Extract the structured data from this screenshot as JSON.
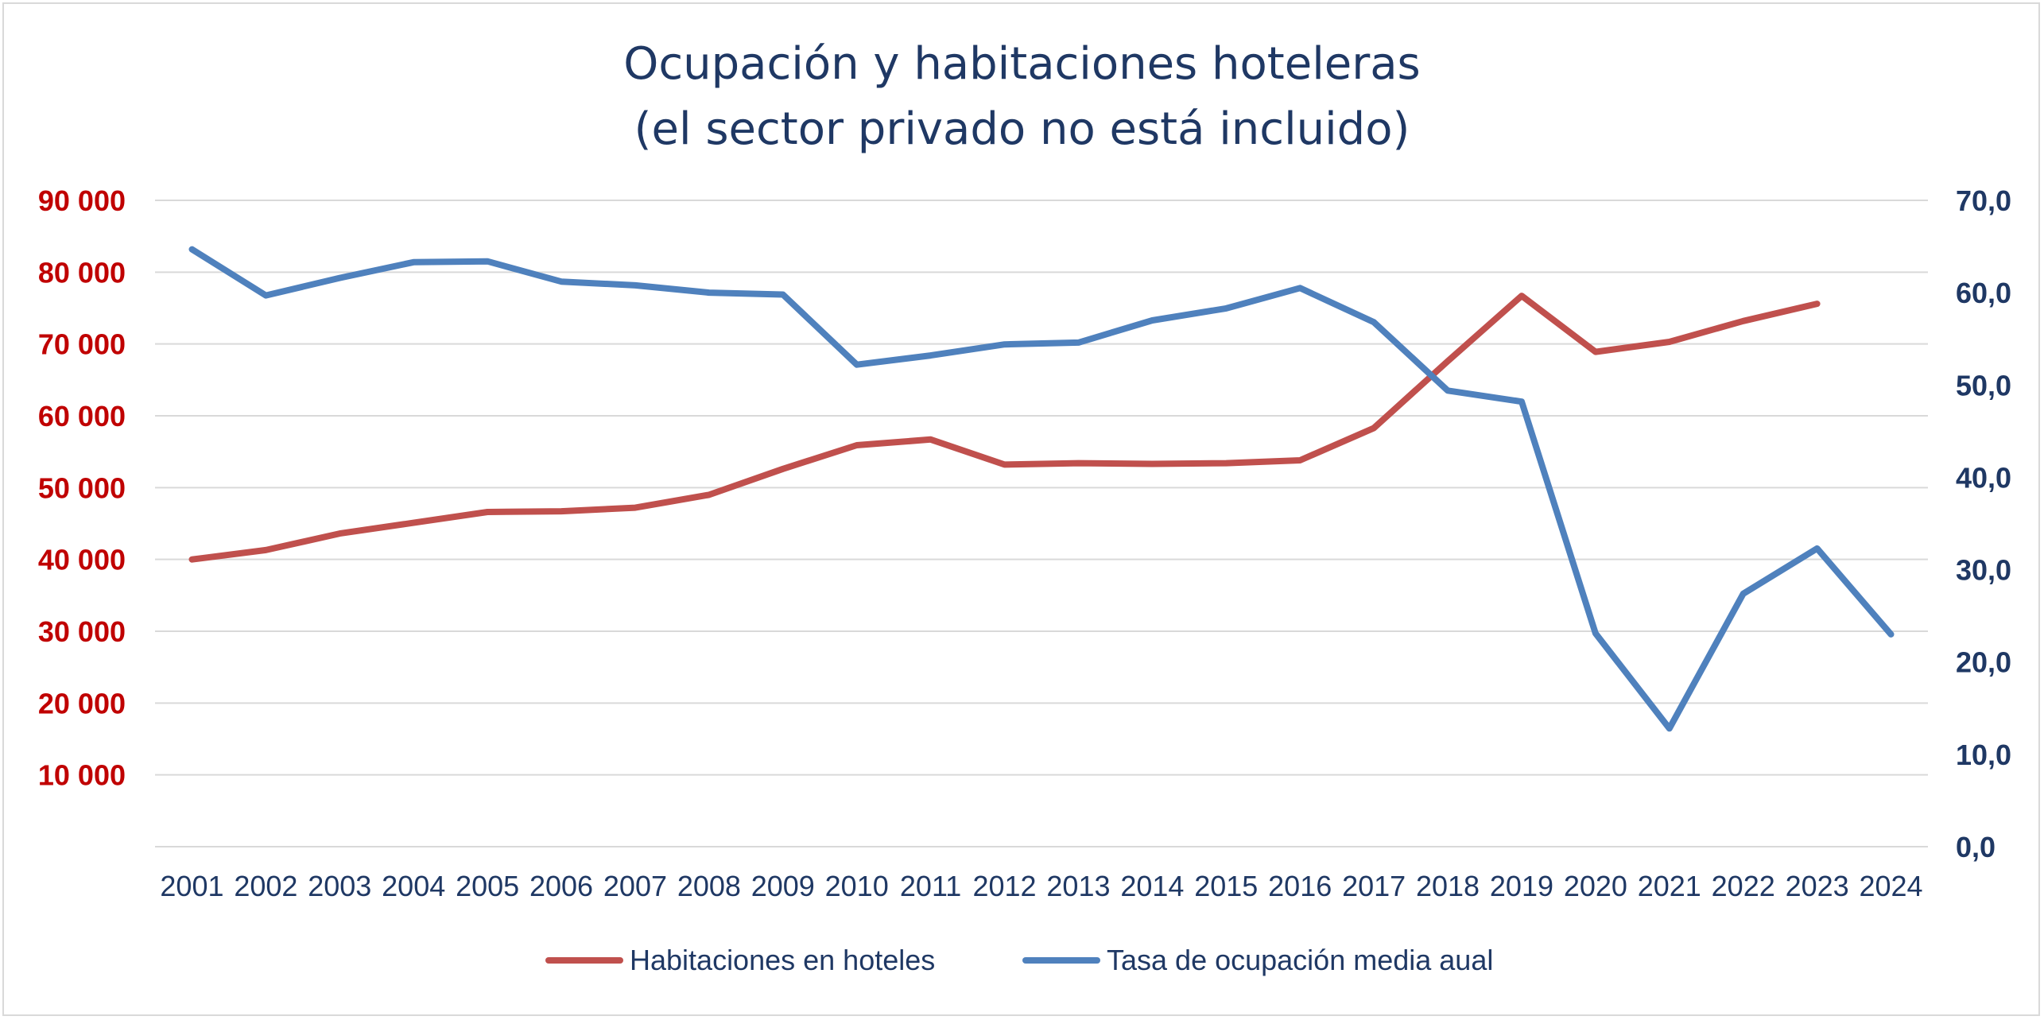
{
  "chart_data": {
    "type": "line",
    "title": "Ocupación y habitaciones hoteleras",
    "subtitle": "(el sector privado no está incluido)",
    "x": [
      "2001",
      "2002",
      "2003",
      "2004",
      "2005",
      "2006",
      "2007",
      "2008",
      "2009",
      "2010",
      "2011",
      "2012",
      "2013",
      "2014",
      "2015",
      "2016",
      "2017",
      "2018",
      "2019",
      "2020",
      "2021",
      "2022",
      "2023",
      "2024"
    ],
    "y_left": {
      "range": [
        0,
        90000
      ],
      "ticks": [
        10000,
        20000,
        30000,
        40000,
        50000,
        60000,
        70000,
        80000,
        90000
      ],
      "tick_labels": [
        "10 000",
        "20 000",
        "30 000",
        "40 000",
        "50 000",
        "60 000",
        "70 000",
        "80 000",
        "90 000"
      ],
      "color": "#c00000"
    },
    "y_right": {
      "range": [
        0,
        70
      ],
      "ticks": [
        0,
        10,
        20,
        30,
        40,
        50,
        60,
        70
      ],
      "tick_labels": [
        "0,0",
        "10,0",
        "20,0",
        "30,0",
        "40,0",
        "50,0",
        "60,0",
        "70,0"
      ],
      "color": "#1f3864"
    },
    "grid": true,
    "legend_position": "bottom",
    "series": [
      {
        "name": "Habitaciones en hoteles",
        "axis": "left",
        "color": "#c0504d",
        "values": [
          40000,
          41300,
          43600,
          45100,
          46600,
          46700,
          47200,
          49000,
          52600,
          55900,
          56700,
          53200,
          53400,
          53300,
          53400,
          53800,
          58300,
          67600,
          76700,
          68900,
          70300,
          73200,
          75600,
          null
        ]
      },
      {
        "name": "Tasa de ocupación media aual",
        "axis": "right",
        "color": "#4f81bd",
        "values": [
          64.7,
          59.7,
          61.6,
          63.3,
          63.4,
          61.2,
          60.8,
          60.0,
          59.8,
          52.2,
          53.2,
          54.4,
          54.6,
          57.0,
          58.3,
          60.5,
          56.8,
          49.4,
          48.2,
          23.1,
          12.8,
          27.4,
          32.3,
          23.0
        ]
      }
    ]
  }
}
